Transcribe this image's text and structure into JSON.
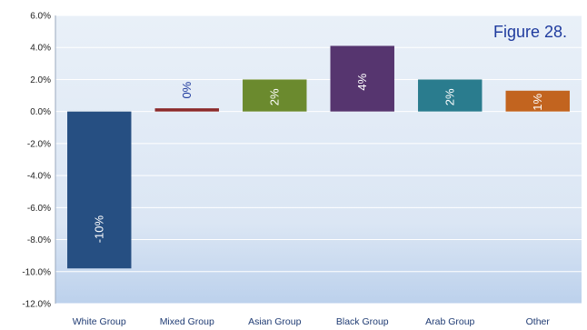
{
  "chart_data": {
    "type": "bar",
    "title": "",
    "annotation": "Figure 28.",
    "categories": [
      "White Group",
      "Mixed Group",
      "Asian Group",
      "Black Group",
      "Arab Group",
      "Other"
    ],
    "values": [
      -9.8,
      0.2,
      2.0,
      4.1,
      2.0,
      1.3
    ],
    "data_labels": [
      "-10%",
      "0%",
      "2%",
      "4%",
      "2%",
      "1%"
    ],
    "bar_colors": [
      "#264f82",
      "#8b2a2a",
      "#6b8a2e",
      "#56356f",
      "#2a7c8e",
      "#c2641f"
    ],
    "label_colors": [
      "#ffffff",
      "#1f3b9e",
      "#ffffff",
      "#ffffff",
      "#ffffff",
      "#ffffff"
    ],
    "ylim": [
      -12,
      6
    ],
    "yticks": [
      6,
      4,
      2,
      0,
      -2,
      -4,
      -6,
      -8,
      -10,
      -12
    ],
    "ytick_labels": [
      "6.0%",
      "4.0%",
      "2.0%",
      "0.0%",
      "-2.0%",
      "-4.0%",
      "-6.0%",
      "-8.0%",
      "-10.0%",
      "-12.0%"
    ],
    "xlabel": "",
    "ylabel": "",
    "grid": true,
    "legend": "none",
    "colors": {
      "plot_bg_top": "#e9f0f8",
      "plot_bg_bottom": "#bcd1ec",
      "grid": "#ffffff",
      "figure_label": "#1f3b9e",
      "axis_text": "#222222",
      "category_text": "#1f3b73"
    }
  }
}
